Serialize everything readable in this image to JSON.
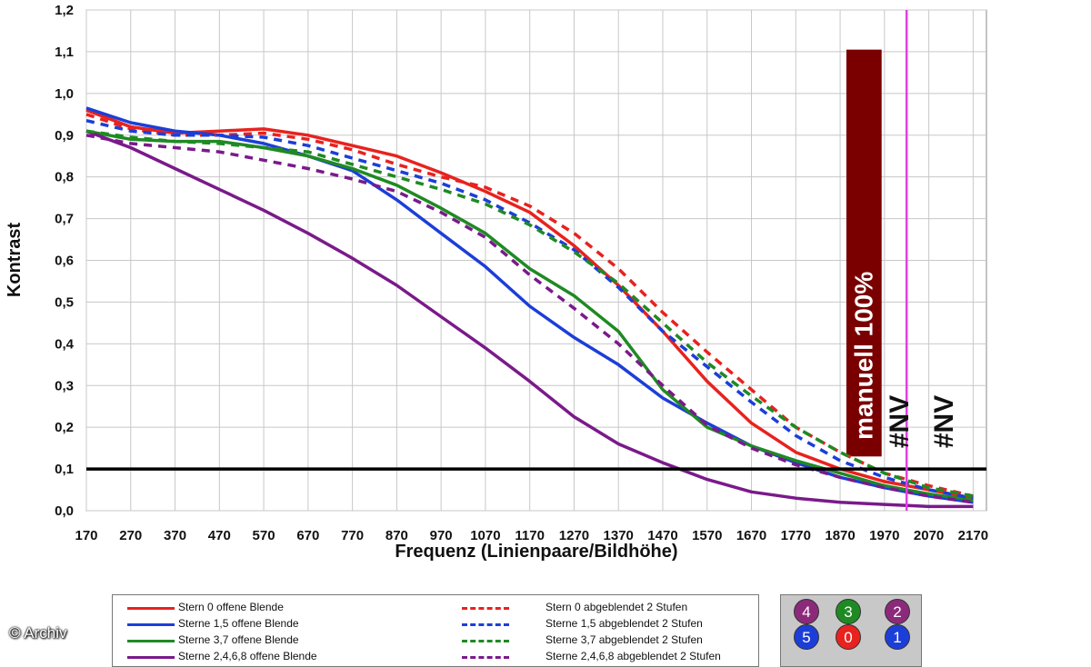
{
  "chart_data": {
    "type": "line",
    "title": "",
    "xlabel": "Frequenz (Linienpaare/Bildhöhe)",
    "ylabel": "Kontrast",
    "xlim": [
      170,
      2200
    ],
    "ylim": [
      0,
      1.2
    ],
    "x_ticks": [
      "170",
      "270",
      "370",
      "470",
      "570",
      "670",
      "770",
      "870",
      "970",
      "1070",
      "1170",
      "1270",
      "1370",
      "1470",
      "1570",
      "1670",
      "1770",
      "1870",
      "1970",
      "2070",
      "2170"
    ],
    "y_ticks": [
      "0,0",
      "0,1",
      "0,2",
      "0,3",
      "0,4",
      "0,5",
      "0,6",
      "0,7",
      "0,8",
      "0,9",
      "1,0",
      "1,1",
      "1,2"
    ],
    "grid": true,
    "threshold_line": {
      "y": 0.1,
      "color": "#000000"
    },
    "vertical_marker": {
      "x": 2020,
      "color": "#e040e0"
    },
    "bar": {
      "x_from": 1880,
      "x_to": 1980,
      "value": 1.105,
      "label": "manuell 100%",
      "color": "#7a0000"
    },
    "na_labels": [
      {
        "x": 2020,
        "text": "#NV"
      },
      {
        "x": 2120,
        "text": "#NV"
      }
    ],
    "series": [
      {
        "name": "Stern 0 offene Blende",
        "color": "#e8221e",
        "dash": false,
        "x": [
          170,
          270,
          370,
          470,
          570,
          670,
          770,
          870,
          970,
          1070,
          1170,
          1270,
          1370,
          1470,
          1570,
          1670,
          1770,
          1870,
          1970,
          2070,
          2170
        ],
        "y": [
          0.96,
          0.92,
          0.905,
          0.91,
          0.915,
          0.9,
          0.875,
          0.85,
          0.81,
          0.765,
          0.715,
          0.635,
          0.54,
          0.43,
          0.31,
          0.21,
          0.14,
          0.1,
          0.07,
          0.05,
          0.03
        ]
      },
      {
        "name": "Sterne 1,5 offene Blende",
        "color": "#1c3ed8",
        "dash": false,
        "x": [
          170,
          270,
          370,
          470,
          570,
          670,
          770,
          870,
          970,
          1070,
          1170,
          1270,
          1370,
          1470,
          1570,
          1670,
          1770,
          1870,
          1970,
          2070,
          2170
        ],
        "y": [
          0.965,
          0.93,
          0.91,
          0.9,
          0.88,
          0.85,
          0.815,
          0.745,
          0.665,
          0.585,
          0.49,
          0.415,
          0.35,
          0.27,
          0.21,
          0.155,
          0.115,
          0.08,
          0.055,
          0.035,
          0.02
        ]
      },
      {
        "name": "Sterne 3,7 offene Blende",
        "color": "#1f8a23",
        "dash": false,
        "x": [
          170,
          270,
          370,
          470,
          570,
          670,
          770,
          870,
          970,
          1070,
          1170,
          1270,
          1370,
          1470,
          1570,
          1670,
          1770,
          1870,
          1970,
          2070,
          2170
        ],
        "y": [
          0.91,
          0.89,
          0.885,
          0.885,
          0.87,
          0.85,
          0.82,
          0.78,
          0.725,
          0.665,
          0.58,
          0.515,
          0.43,
          0.29,
          0.2,
          0.155,
          0.12,
          0.09,
          0.06,
          0.04,
          0.025
        ]
      },
      {
        "name": "Sterne 2,4,6,8 offene Blende",
        "color": "#7a1a8a",
        "dash": false,
        "x": [
          170,
          270,
          370,
          470,
          570,
          670,
          770,
          870,
          970,
          1070,
          1170,
          1270,
          1370,
          1470,
          1570,
          1670,
          1770,
          1870,
          1970,
          2070,
          2170
        ],
        "y": [
          0.91,
          0.87,
          0.82,
          0.77,
          0.72,
          0.665,
          0.605,
          0.54,
          0.465,
          0.39,
          0.31,
          0.225,
          0.16,
          0.115,
          0.075,
          0.045,
          0.03,
          0.02,
          0.015,
          0.01,
          0.01
        ]
      },
      {
        "name": "Stern 0 abgeblendet 2 Stufen",
        "color": "#e8221e",
        "dash": true,
        "x": [
          170,
          270,
          370,
          470,
          570,
          670,
          770,
          870,
          970,
          1070,
          1170,
          1270,
          1370,
          1470,
          1570,
          1670,
          1770,
          1870,
          1970,
          2070,
          2170
        ],
        "y": [
          0.95,
          0.915,
          0.9,
          0.9,
          0.905,
          0.89,
          0.865,
          0.83,
          0.8,
          0.775,
          0.73,
          0.665,
          0.58,
          0.475,
          0.38,
          0.29,
          0.2,
          0.14,
          0.09,
          0.06,
          0.035
        ]
      },
      {
        "name": "Sterne 1,5 abgeblendet 2 Stufen",
        "color": "#1c3ed8",
        "dash": true,
        "x": [
          170,
          270,
          370,
          470,
          570,
          670,
          770,
          870,
          970,
          1070,
          1170,
          1270,
          1370,
          1470,
          1570,
          1670,
          1770,
          1870,
          1970,
          2070,
          2170
        ],
        "y": [
          0.935,
          0.91,
          0.9,
          0.9,
          0.895,
          0.875,
          0.845,
          0.815,
          0.785,
          0.745,
          0.69,
          0.625,
          0.535,
          0.43,
          0.345,
          0.26,
          0.18,
          0.12,
          0.08,
          0.05,
          0.03
        ]
      },
      {
        "name": "Sterne 3,7 abgeblendet 2 Stufen",
        "color": "#1f8a23",
        "dash": true,
        "x": [
          170,
          270,
          370,
          470,
          570,
          670,
          770,
          870,
          970,
          1070,
          1170,
          1270,
          1370,
          1470,
          1570,
          1670,
          1770,
          1870,
          1970,
          2070,
          2170
        ],
        "y": [
          0.91,
          0.895,
          0.885,
          0.88,
          0.87,
          0.86,
          0.83,
          0.8,
          0.77,
          0.735,
          0.685,
          0.62,
          0.545,
          0.45,
          0.355,
          0.275,
          0.2,
          0.14,
          0.09,
          0.055,
          0.035
        ]
      },
      {
        "name": "Sterne 2,4,6,8 abgeblendet 2 Stufen",
        "color": "#7a1a8a",
        "dash": true,
        "x": [
          170,
          270,
          370,
          470,
          570,
          670,
          770,
          870,
          970,
          1070,
          1170,
          1270,
          1370,
          1470,
          1570,
          1670,
          1770,
          1870,
          1970,
          2070,
          2170
        ],
        "y": [
          0.9,
          0.88,
          0.87,
          0.86,
          0.84,
          0.82,
          0.795,
          0.765,
          0.715,
          0.655,
          0.565,
          0.485,
          0.4,
          0.3,
          0.205,
          0.15,
          0.11,
          0.08,
          0.055,
          0.035,
          0.02
        ]
      }
    ]
  },
  "legend": {
    "items": [
      {
        "label": "Stern 0 offene Blende",
        "color": "#e8221e",
        "dash": false
      },
      {
        "label": "Sterne 1,5 offene Blende",
        "color": "#1c3ed8",
        "dash": false
      },
      {
        "label": "Sterne 3,7 offene Blende",
        "color": "#1f8a23",
        "dash": false
      },
      {
        "label": "Sterne 2,4,6,8 offene Blende",
        "color": "#7a1a8a",
        "dash": false
      },
      {
        "label": "Stern 0 abgeblendet 2 Stufen",
        "color": "#e8221e",
        "dash": true
      },
      {
        "label": "Sterne 1,5 abgeblendet 2 Stufen",
        "color": "#1c3ed8",
        "dash": true
      },
      {
        "label": "Sterne 3,7 abgeblendet 2 Stufen",
        "color": "#1f8a23",
        "dash": true
      },
      {
        "label": "Sterne 2,4,6,8 abgeblendet 2 Stufen",
        "color": "#7a1a8a",
        "dash": true
      }
    ]
  },
  "star_panel": {
    "stars": [
      {
        "label": "4",
        "color": "#8b2a7a"
      },
      {
        "label": "3",
        "color": "#1f8a23"
      },
      {
        "label": "2",
        "color": "#8b2a7a"
      },
      {
        "label": "5",
        "color": "#1c3ed8"
      },
      {
        "label": "0",
        "color": "#e8221e"
      },
      {
        "label": "1",
        "color": "#1c3ed8"
      }
    ]
  },
  "copyright": "© Archiv"
}
